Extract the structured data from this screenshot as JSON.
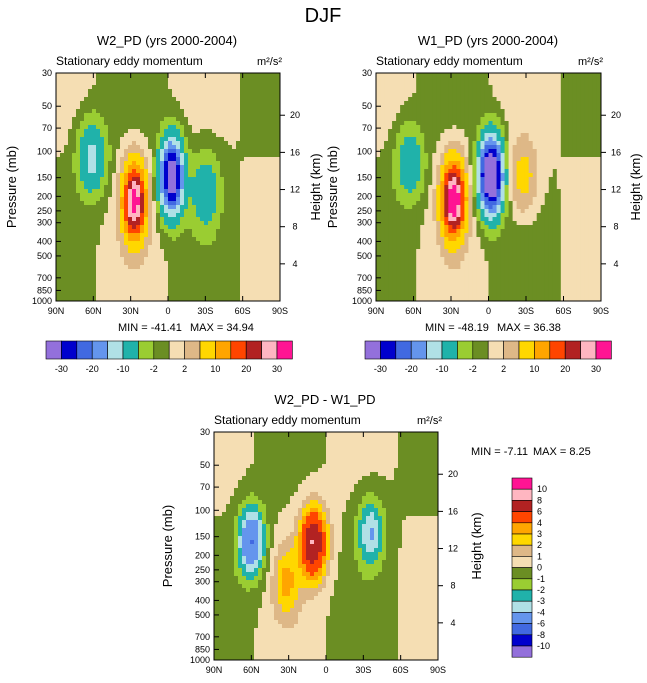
{
  "figure_title": "DJF",
  "chart_data": [
    {
      "type": "heatmap",
      "title": "W2_PD (yrs 2000-2004)",
      "subtitle": "Stationary eddy momentum",
      "units": "m²/s²",
      "xlabel": "",
      "ylabel": "Pressure (mb)",
      "y2label": "Height (km)",
      "x_ticks": [
        "90N",
        "60N",
        "30N",
        "0",
        "30S",
        "60S",
        "90S"
      ],
      "y_ticks": [
        "30",
        "50",
        "70",
        "100",
        "150",
        "200",
        "250",
        "300",
        "400",
        "500",
        "700",
        "850",
        "1000"
      ],
      "y2_ticks": [
        "20",
        "16",
        "12",
        "8",
        "4"
      ],
      "min_label": "MIN = -41.41",
      "max_label": "MAX =  34.94",
      "ylim": [
        1000,
        30
      ],
      "features": [
        {
          "lat": 61,
          "p": 110,
          "val": -12
        },
        {
          "lat": 27,
          "p": 215,
          "val": 33
        },
        {
          "lat": -3,
          "p": 148,
          "val": -38
        },
        {
          "lat": -30,
          "p": 185,
          "val": -9
        }
      ]
    },
    {
      "type": "heatmap",
      "title": "W1_PD (yrs 2000-2004)",
      "subtitle": "Stationary eddy momentum",
      "units": "m²/s²",
      "xlabel": "",
      "ylabel": "Pressure (mb)",
      "y2label": "Height (km)",
      "x_ticks": [
        "90N",
        "60N",
        "30N",
        "0",
        "30S",
        "60S",
        "90S"
      ],
      "y_ticks": [
        "30",
        "50",
        "70",
        "100",
        "150",
        "200",
        "250",
        "300",
        "400",
        "500",
        "700",
        "850",
        "1000"
      ],
      "y2_ticks": [
        "20",
        "16",
        "12",
        "8",
        "4"
      ],
      "min_label": "MIN = -48.19",
      "max_label": "MAX =  36.38",
      "ylim": [
        1000,
        30
      ],
      "features": [
        {
          "lat": 63,
          "p": 120,
          "val": -9
        },
        {
          "lat": 28,
          "p": 210,
          "val": 36
        },
        {
          "lat": -2,
          "p": 145,
          "val": -45
        },
        {
          "lat": -28,
          "p": 150,
          "val": 7
        }
      ]
    },
    {
      "type": "heatmap",
      "title": "W2_PD - W1_PD",
      "subtitle": "Stationary eddy momentum",
      "units": "m²/s²",
      "xlabel": "",
      "ylabel": "Pressure (mb)",
      "y2label": "Height (km)",
      "x_ticks": [
        "90N",
        "60N",
        "30N",
        "0",
        "30S",
        "60S",
        "90S"
      ],
      "y_ticks": [
        "30",
        "50",
        "70",
        "100",
        "150",
        "200",
        "250",
        "300",
        "400",
        "500",
        "700",
        "850",
        "1000"
      ],
      "y2_ticks": [
        "20",
        "16",
        "12",
        "8",
        "4"
      ],
      "min_label": "MIN =  -7.11",
      "max_label": "MAX =   8.25",
      "ylim": [
        1000,
        30
      ],
      "features": [
        {
          "lat": 60,
          "p": 160,
          "val": -6
        },
        {
          "lat": 10,
          "p": 165,
          "val": 8
        },
        {
          "lat": 32,
          "p": 300,
          "val": 3
        },
        {
          "lat": -36,
          "p": 140,
          "val": -4
        }
      ]
    }
  ],
  "colorbars": {
    "top_levels": [
      "-30",
      "-20",
      "-10",
      "-2",
      "2",
      "10",
      "20",
      "30"
    ],
    "top_colors": [
      "#9370db",
      "#0000cd",
      "#4169e1",
      "#6495ed",
      "#b0e0e6",
      "#20b2aa",
      "#9acd32",
      "#6b8e23",
      "#f5deb3",
      "#deb887",
      "#ffd700",
      "#ffa500",
      "#ff4500",
      "#b22222",
      "#ffb6c1",
      "#ff1493"
    ],
    "diff_levels": [
      "10",
      "8",
      "6",
      "4",
      "3",
      "2",
      "1",
      "0",
      "-1",
      "-2",
      "-3",
      "-4",
      "-6",
      "-8",
      "-10"
    ],
    "diff_colors": [
      "#ff1493",
      "#ffb6c1",
      "#b22222",
      "#ff4500",
      "#ffa500",
      "#ffd700",
      "#deb887",
      "#f5deb3",
      "#6b8e23",
      "#9acd32",
      "#20b2aa",
      "#b0e0e6",
      "#6495ed",
      "#4169e1",
      "#0000cd",
      "#9370db"
    ]
  }
}
